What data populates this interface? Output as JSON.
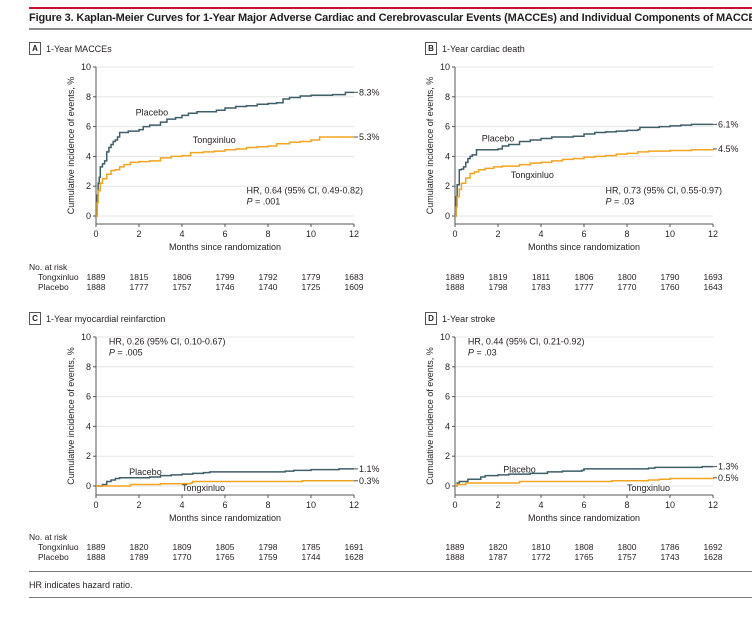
{
  "figure": {
    "title": "Figure 3. Kaplan-Meier Curves for 1-Year Major Adverse Cardiac and Cerebrovascular Events (MACCEs) and Individual Components of MACCEs",
    "footnote": "HR indicates hazard ratio.",
    "risk_header": "No. at risk",
    "colors": {
      "placebo": "#3d5f69",
      "tongxinluo": "#f2a51f",
      "accent": "#c8102e"
    }
  },
  "chart_data": [
    {
      "type": "line",
      "panel": "A",
      "title": "1-Year MACCEs",
      "xlabel": "Months since randomization",
      "ylabel": "Cumulative incidence of events, %",
      "xlim": [
        0,
        12
      ],
      "ylim": [
        0,
        10
      ],
      "xticks": [
        "0",
        "2",
        "4",
        "6",
        "8",
        "10",
        "12"
      ],
      "yticks": [
        "0",
        "2",
        "4",
        "6",
        "8",
        "10"
      ],
      "grid": true,
      "annotation": {
        "hr": "HR, 0.64 (95% CI, 0.49-0.82)",
        "p": ".001",
        "position": "bottom-right"
      },
      "series": [
        {
          "name": "Placebo",
          "end_label": "8.3%",
          "label_at": [
            2.6,
            6.95
          ],
          "x": [
            0,
            0.05,
            0.1,
            0.15,
            0.2,
            0.3,
            0.4,
            0.5,
            0.6,
            0.7,
            0.8,
            0.9,
            1.0,
            1.1,
            1.2,
            1.5,
            2,
            2.2,
            2.5,
            3,
            3.3,
            3.7,
            4,
            4.3,
            4.7,
            5.2,
            5.6,
            6,
            6.5,
            7,
            7.5,
            8,
            8.4,
            8.7,
            9,
            9.5,
            10,
            10.5,
            11,
            11.3,
            11.6,
            12
          ],
          "y": [
            0,
            1.4,
            2.2,
            2.6,
            3.3,
            3.5,
            3.7,
            4.3,
            4.6,
            4.8,
            5.0,
            5.1,
            5.3,
            5.6,
            5.6,
            5.7,
            5.8,
            6.0,
            6.1,
            6.3,
            6.5,
            6.6,
            6.75,
            6.9,
            7.0,
            7.0,
            7.1,
            7.25,
            7.35,
            7.4,
            7.5,
            7.55,
            7.6,
            7.85,
            7.95,
            8.05,
            8.1,
            8.1,
            8.15,
            8.15,
            8.3,
            8.3
          ]
        },
        {
          "name": "Tongxinluo",
          "end_label": "5.3%",
          "label_at": [
            5.5,
            5.1
          ],
          "x": [
            0,
            0.05,
            0.1,
            0.2,
            0.3,
            0.5,
            0.7,
            0.9,
            1.1,
            1.3,
            1.6,
            2,
            2.5,
            3,
            3.5,
            4,
            4.4,
            5,
            5.5,
            6,
            6.5,
            7,
            7.5,
            8,
            8.4,
            9,
            9.5,
            10,
            10.4,
            11,
            12
          ],
          "y": [
            0,
            0.9,
            1.7,
            2.2,
            2.5,
            2.8,
            3.05,
            3.1,
            3.3,
            3.45,
            3.6,
            3.65,
            3.7,
            3.9,
            4.0,
            4.05,
            4.25,
            4.3,
            4.35,
            4.45,
            4.5,
            4.6,
            4.65,
            4.7,
            4.85,
            4.95,
            5.0,
            5.1,
            5.3,
            5.3,
            5.3
          ]
        }
      ],
      "risk_table": {
        "times": [
          0,
          2,
          4,
          6,
          8,
          10,
          12
        ],
        "rows": [
          {
            "name": "Tongxinluo",
            "values": [
              1889,
              1815,
              1806,
              1799,
              1792,
              1779,
              1683
            ]
          },
          {
            "name": "Placebo",
            "values": [
              1888,
              1777,
              1757,
              1746,
              1740,
              1725,
              1609
            ]
          }
        ]
      }
    },
    {
      "type": "line",
      "panel": "B",
      "title": "1-Year cardiac death",
      "xlabel": "Months since randomization",
      "ylabel": "Cumulative incidence of events, %",
      "xlim": [
        0,
        12
      ],
      "ylim": [
        0,
        10
      ],
      "xticks": [
        "0",
        "2",
        "4",
        "6",
        "8",
        "10",
        "12"
      ],
      "yticks": [
        "0",
        "2",
        "4",
        "6",
        "8",
        "10"
      ],
      "grid": true,
      "annotation": {
        "hr": "HR, 0.73 (95% CI, 0.55-0.97)",
        "p": ".03",
        "position": "bottom-right"
      },
      "series": [
        {
          "name": "Placebo",
          "end_label": "6.1%",
          "label_at": [
            2.0,
            5.2
          ],
          "x": [
            0,
            0.05,
            0.1,
            0.2,
            0.3,
            0.4,
            0.5,
            0.6,
            0.7,
            0.8,
            1.0,
            1.5,
            2,
            2.2,
            2.5,
            3,
            3.5,
            4,
            4.5,
            5,
            5.5,
            6,
            6.5,
            7,
            7.5,
            8,
            8.5,
            8.6,
            9,
            9.5,
            10,
            10.5,
            11,
            12
          ],
          "y": [
            0,
            1.3,
            2.1,
            3.1,
            3.15,
            3.3,
            3.6,
            3.85,
            4.0,
            4.1,
            4.45,
            4.45,
            4.5,
            4.7,
            4.8,
            5.0,
            5.1,
            5.2,
            5.3,
            5.3,
            5.35,
            5.5,
            5.6,
            5.65,
            5.7,
            5.75,
            5.8,
            5.95,
            5.95,
            6.0,
            6.05,
            6.1,
            6.15,
            6.15
          ]
        },
        {
          "name": "Tongxinluo",
          "end_label": "4.5%",
          "label_at": [
            3.6,
            2.75
          ],
          "x": [
            0,
            0.05,
            0.1,
            0.2,
            0.3,
            0.5,
            0.7,
            0.9,
            1.1,
            1.4,
            1.8,
            2.2,
            3,
            3.5,
            4,
            4.5,
            5,
            5.5,
            6,
            6.5,
            7,
            7.5,
            8,
            8.5,
            9,
            10,
            11,
            12
          ],
          "y": [
            0,
            0.6,
            1.3,
            1.8,
            2.2,
            2.55,
            2.85,
            2.95,
            3.1,
            3.2,
            3.3,
            3.35,
            3.45,
            3.55,
            3.6,
            3.7,
            3.8,
            3.85,
            3.95,
            4.0,
            4.05,
            4.15,
            4.2,
            4.3,
            4.35,
            4.4,
            4.45,
            4.5
          ]
        }
      ],
      "risk_table": {
        "times": [
          0,
          2,
          4,
          6,
          8,
          10,
          12
        ],
        "rows": [
          {
            "name": "Tongxinluo",
            "values": [
              1889,
              1819,
              1811,
              1806,
              1800,
              1790,
              1693
            ]
          },
          {
            "name": "Placebo",
            "values": [
              1888,
              1798,
              1783,
              1777,
              1770,
              1760,
              1643
            ]
          }
        ]
      }
    },
    {
      "type": "line",
      "panel": "C",
      "title": "1-Year myocardial reinfarction",
      "xlabel": "Months since randomization",
      "ylabel": "Cumulative incidence of events, %",
      "xlim": [
        0,
        12
      ],
      "ylim": [
        0,
        10
      ],
      "xticks": [
        "0",
        "2",
        "4",
        "6",
        "8",
        "10",
        "12"
      ],
      "yticks": [
        "0",
        "2",
        "4",
        "6",
        "8",
        "10"
      ],
      "grid": true,
      "annotation": {
        "hr": "HR, 0.26 (95% CI, 0.10-0.67)",
        "p": ".005",
        "position": "top-left"
      },
      "series": [
        {
          "name": "Placebo",
          "end_label": "1.1%",
          "label_at": [
            2.3,
            0.95
          ],
          "x": [
            0,
            0.3,
            0.5,
            0.7,
            0.9,
            1.1,
            1.5,
            2,
            2.5,
            3,
            3.5,
            4,
            4.5,
            5,
            5.3,
            6,
            7,
            8,
            8.8,
            9.2,
            9.6,
            10,
            11,
            11.3,
            12
          ],
          "y": [
            0,
            0.1,
            0.3,
            0.4,
            0.5,
            0.55,
            0.55,
            0.55,
            0.6,
            0.7,
            0.75,
            0.8,
            0.85,
            0.9,
            0.95,
            0.95,
            0.95,
            0.95,
            1.0,
            1.05,
            1.05,
            1.1,
            1.1,
            1.15,
            1.15
          ]
        },
        {
          "name": "Tongxinluo",
          "end_label": "0.3%",
          "label_at": [
            5.0,
            -0.15
          ],
          "x": [
            0,
            1.0,
            1.6,
            2.5,
            3.0,
            4.0,
            4.4,
            4.5,
            6,
            8,
            9.5,
            9.6,
            12
          ],
          "y": [
            0,
            0.0,
            0.1,
            0.1,
            0.15,
            0.15,
            0.2,
            0.3,
            0.3,
            0.3,
            0.3,
            0.35,
            0.35
          ]
        }
      ],
      "risk_table": {
        "times": [
          0,
          2,
          4,
          6,
          8,
          10,
          12
        ],
        "rows": [
          {
            "name": "Tongxinluo",
            "values": [
              1889,
              1820,
              1809,
              1805,
              1798,
              1785,
              1691
            ]
          },
          {
            "name": "Placebo",
            "values": [
              1888,
              1789,
              1770,
              1765,
              1759,
              1744,
              1628
            ]
          }
        ]
      }
    },
    {
      "type": "line",
      "panel": "D",
      "title": "1-Year stroke",
      "xlabel": "Months since randomization",
      "ylabel": "Cumulative incidence of events, %",
      "xlim": [
        0,
        12
      ],
      "ylim": [
        0,
        10
      ],
      "xticks": [
        "0",
        "2",
        "4",
        "6",
        "8",
        "10",
        "12"
      ],
      "yticks": [
        "0",
        "2",
        "4",
        "6",
        "8",
        "10"
      ],
      "grid": true,
      "annotation": {
        "hr": "HR, 0.44 (95% CI, 0.21-0.92)",
        "p": ".03",
        "position": "top-left"
      },
      "series": [
        {
          "name": "Placebo",
          "end_label": "1.3%",
          "label_at": [
            3.0,
            1.1
          ],
          "x": [
            0,
            0.1,
            0.2,
            0.5,
            0.6,
            1.0,
            1.2,
            1.4,
            2,
            2.5,
            3,
            3.5,
            4,
            4.3,
            5,
            5.9,
            6,
            7,
            8,
            9,
            9.3,
            10,
            11,
            11.5,
            12
          ],
          "y": [
            0,
            0.2,
            0.3,
            0.3,
            0.45,
            0.45,
            0.6,
            0.7,
            0.75,
            0.8,
            0.8,
            0.85,
            0.85,
            0.95,
            1.0,
            1.05,
            1.15,
            1.15,
            1.15,
            1.2,
            1.25,
            1.25,
            1.25,
            1.3,
            1.3
          ]
        },
        {
          "name": "Tongxinluo",
          "end_label": "0.5%",
          "label_at": [
            9.0,
            -0.15
          ],
          "x": [
            0,
            0.1,
            0.2,
            0.5,
            1.0,
            2.0,
            2.9,
            3.0,
            5,
            7,
            7.3,
            8,
            9,
            9.5,
            10,
            11,
            12
          ],
          "y": [
            0,
            0.1,
            0.1,
            0.2,
            0.2,
            0.2,
            0.2,
            0.3,
            0.3,
            0.3,
            0.35,
            0.35,
            0.4,
            0.45,
            0.5,
            0.5,
            0.55
          ]
        }
      ],
      "risk_table": {
        "times": [
          0,
          2,
          4,
          6,
          8,
          10,
          12
        ],
        "rows": [
          {
            "name": "Tongxinluo",
            "values": [
              1889,
              1820,
              1810,
              1808,
              1800,
              1786,
              1692
            ]
          },
          {
            "name": "Placebo",
            "values": [
              1888,
              1787,
              1772,
              1765,
              1757,
              1743,
              1628
            ]
          }
        ]
      }
    }
  ]
}
